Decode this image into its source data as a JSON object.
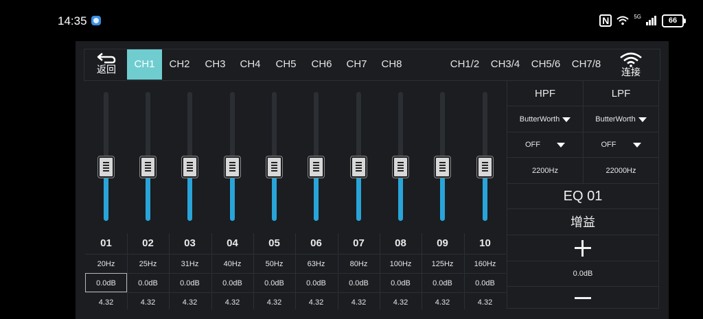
{
  "status_bar": {
    "time": "14:35",
    "battery": "66"
  },
  "header": {
    "back_label": "返回",
    "connect_label": "连接",
    "tabs": [
      "CH1",
      "CH2",
      "CH3",
      "CH4",
      "CH5",
      "CH6",
      "CH7",
      "CH8",
      "CH1/2",
      "CH3/4",
      "CH5/6",
      "CH7/8"
    ],
    "active_tab": "CH1"
  },
  "bands": [
    {
      "num": "01",
      "freq": "20Hz",
      "gain": "0.0dB",
      "q": "4.32",
      "level": 0.42
    },
    {
      "num": "02",
      "freq": "25Hz",
      "gain": "0.0dB",
      "q": "4.32",
      "level": 0.42
    },
    {
      "num": "03",
      "freq": "31Hz",
      "gain": "0.0dB",
      "q": "4.32",
      "level": 0.42
    },
    {
      "num": "04",
      "freq": "40Hz",
      "gain": "0.0dB",
      "q": "4.32",
      "level": 0.42
    },
    {
      "num": "05",
      "freq": "50Hz",
      "gain": "0.0dB",
      "q": "4.32",
      "level": 0.42
    },
    {
      "num": "06",
      "freq": "63Hz",
      "gain": "0.0dB",
      "q": "4.32",
      "level": 0.42
    },
    {
      "num": "07",
      "freq": "80Hz",
      "gain": "0.0dB",
      "q": "4.32",
      "level": 0.42
    },
    {
      "num": "08",
      "freq": "100Hz",
      "gain": "0.0dB",
      "q": "4.32",
      "level": 0.42
    },
    {
      "num": "09",
      "freq": "125Hz",
      "gain": "0.0dB",
      "q": "4.32",
      "level": 0.42
    },
    {
      "num": "10",
      "freq": "160Hz",
      "gain": "0.0dB",
      "q": "4.32",
      "level": 0.42
    }
  ],
  "selected_band": 0,
  "filters": {
    "hpf_label": "HPF",
    "lpf_label": "LPF",
    "hpf_type": "ButterWorth",
    "lpf_type": "ButterWorth",
    "hpf_slope": "OFF",
    "lpf_slope": "OFF",
    "hpf_freq": "2200Hz",
    "lpf_freq": "22000Hz"
  },
  "eq_panel": {
    "eq_name": "EQ 01",
    "gain_label": "增益",
    "gain_value": "0.0dB"
  },
  "colors": {
    "accent": "#6fcdd0",
    "slider_fill": "#29a4d8",
    "panel_bg": "#1b1d21"
  },
  "icons": {
    "back": "back-arrow-icon",
    "connect": "wifi-icon",
    "plus": "plus-icon",
    "minus": "minus-icon"
  }
}
